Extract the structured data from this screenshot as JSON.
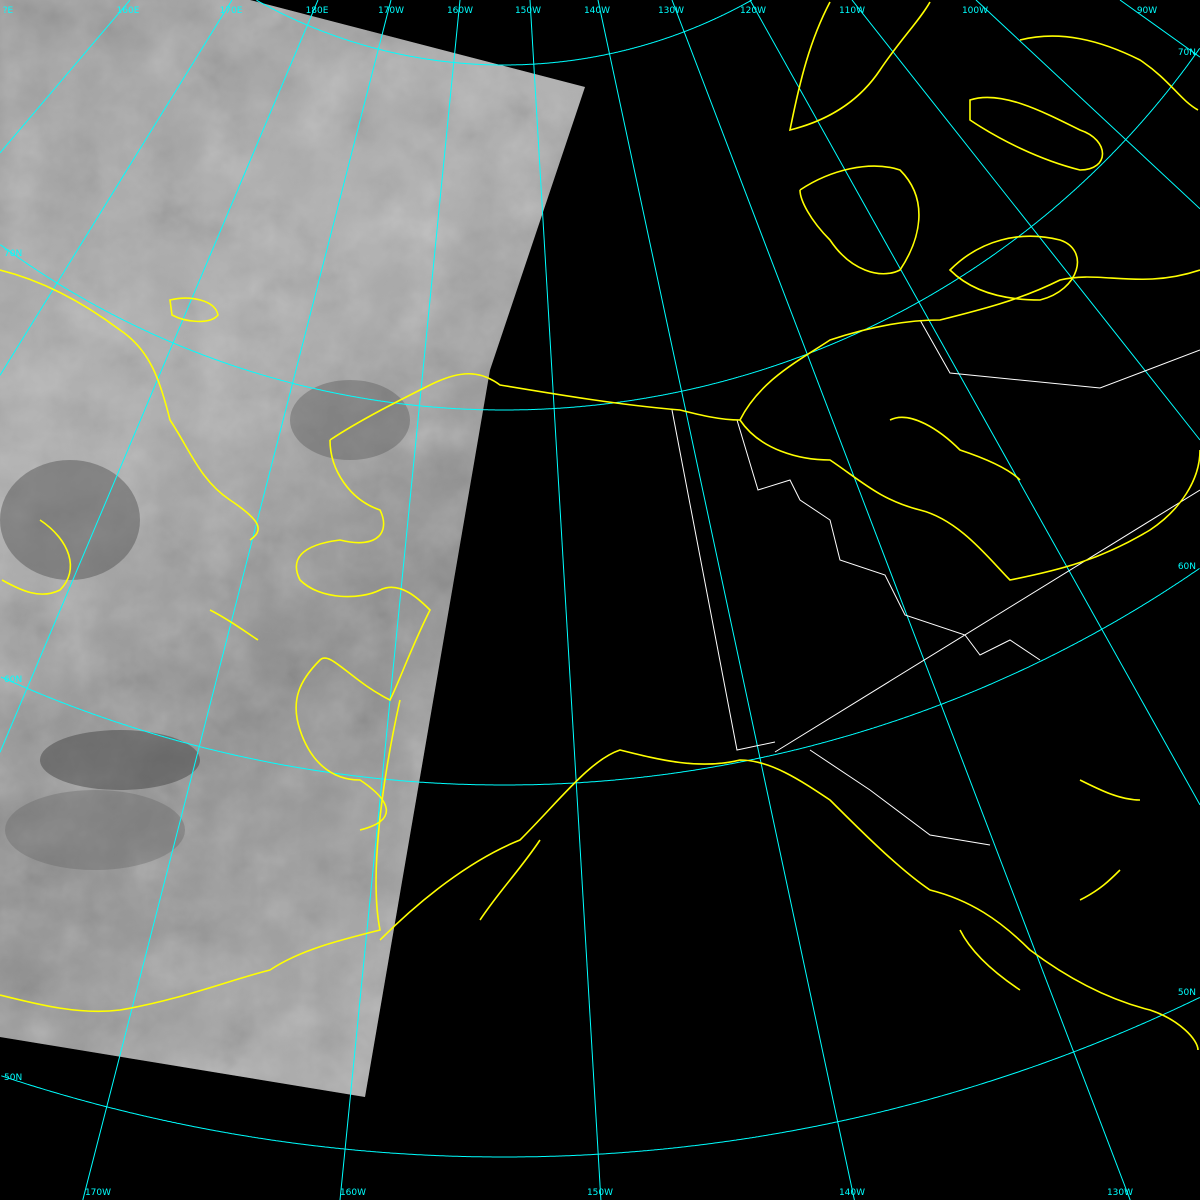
{
  "colors": {
    "background": "#000000",
    "graticule": "#00ffff",
    "coastline": "#ffff00",
    "borders": "#ffffff",
    "imagery": "#a0a0a0"
  },
  "labels": {
    "top": [
      "?E",
      "160E",
      "170E",
      "180E",
      "170W",
      "160W",
      "150W",
      "140W",
      "130W",
      "120W",
      "110W",
      "100W",
      "90W"
    ],
    "left": [
      "70N",
      "60N",
      "50N"
    ],
    "right": [
      "70N",
      "60N",
      "50N"
    ],
    "bottom": [
      "170W",
      "160W",
      "150W",
      "140W",
      "130W"
    ]
  }
}
